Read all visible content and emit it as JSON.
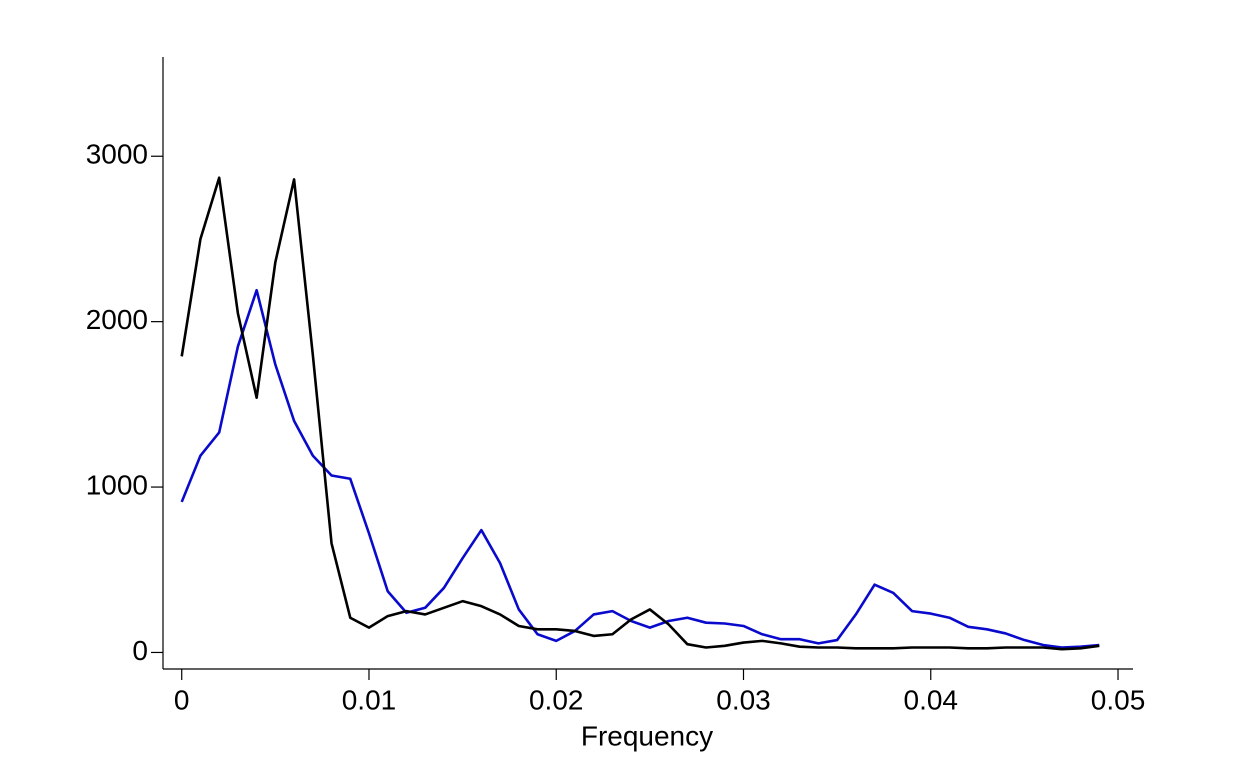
{
  "chart_data": {
    "type": "line",
    "x_label": "Frequency",
    "x": [
      0,
      0.001,
      0.002,
      0.003,
      0.004,
      0.005,
      0.006,
      0.007,
      0.008,
      0.009,
      0.01,
      0.011,
      0.012,
      0.013,
      0.014,
      0.015,
      0.016,
      0.017,
      0.018,
      0.019,
      0.02,
      0.021,
      0.022,
      0.023,
      0.024,
      0.025,
      0.026,
      0.027,
      0.028,
      0.029,
      0.03,
      0.031,
      0.032,
      0.033,
      0.034,
      0.035,
      0.036,
      0.037,
      0.038,
      0.039,
      0.04,
      0.041,
      0.042,
      0.043,
      0.044,
      0.045,
      0.046,
      0.047,
      0.048,
      0.049
    ],
    "series": [
      {
        "color": "#0a0acc",
        "values": [
          910,
          1190,
          1330,
          1850,
          2190,
          1740,
          1400,
          1190,
          1070,
          1050,
          720,
          370,
          240,
          270,
          390,
          570,
          740,
          540,
          260,
          110,
          70,
          130,
          230,
          250,
          190,
          150,
          190,
          210,
          180,
          175,
          160,
          110,
          80,
          80,
          55,
          75,
          230,
          410,
          360,
          250,
          235,
          210,
          155,
          140,
          115,
          75,
          45,
          30,
          35,
          45
        ]
      },
      {
        "color": "#000000",
        "values": [
          1790,
          2500,
          2870,
          2050,
          1540,
          2360,
          2860,
          1800,
          660,
          210,
          150,
          220,
          250,
          230,
          270,
          310,
          280,
          230,
          160,
          140,
          140,
          130,
          100,
          110,
          200,
          260,
          170,
          50,
          30,
          40,
          60,
          70,
          55,
          35,
          30,
          30,
          25,
          25,
          25,
          30,
          30,
          30,
          25,
          25,
          30,
          30,
          30,
          20,
          25,
          40
        ]
      }
    ],
    "xlim": [
      -0.001,
      0.0508
    ],
    "ylim": [
      -100,
      3600
    ],
    "xticks": [
      0,
      0.01,
      0.02,
      0.03,
      0.04,
      0.05
    ],
    "yticks": [
      0,
      1000,
      2000,
      3000
    ]
  }
}
